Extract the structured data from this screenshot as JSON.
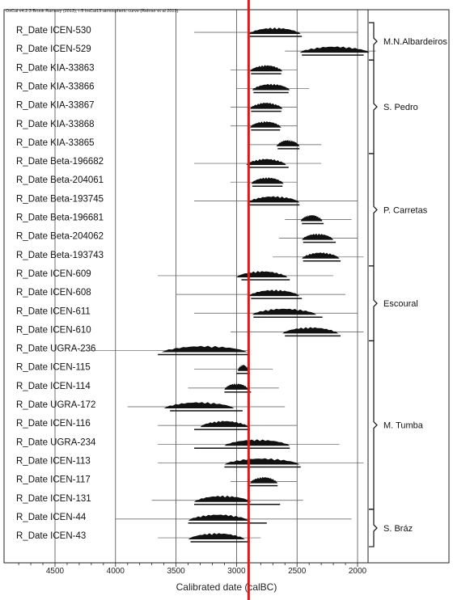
{
  "header_text": "OxCal v4.2.3 Bronk Ramsey (2013); r:5 IntCal13 atmospheric curve (Reimer et al 2013)",
  "chart_data": {
    "type": "range",
    "xlabel": "Calibrated date (calBC)",
    "xlim": [
      4800,
      1850
    ],
    "xticks": [
      4500,
      4000,
      3500,
      3000,
      2500,
      2000
    ],
    "reference_line": {
      "x": 2900,
      "color": "#e0181b"
    },
    "series": [
      {
        "label": "R_Date ICEN-530",
        "range": [
          2900,
          2470
        ],
        "bar": [
          2890,
          2460
        ],
        "extent": [
          3350,
          2000
        ]
      },
      {
        "label": "R_Date ICEN-529",
        "range": [
          2480,
          1900
        ],
        "bar": [
          2460,
          1950
        ],
        "extent": [
          2600,
          1850
        ]
      },
      {
        "label": "R_Date KIA-33863",
        "range": [
          2890,
          2620
        ],
        "bar": [
          2880,
          2630
        ],
        "extent": [
          3050,
          2500
        ]
      },
      {
        "label": "R_Date KIA-33866",
        "range": [
          2870,
          2560
        ],
        "bar": [
          2860,
          2570
        ],
        "extent": [
          3000,
          2400
        ]
      },
      {
        "label": "R_Date KIA-33867",
        "range": [
          2890,
          2620
        ],
        "bar": [
          2880,
          2630
        ],
        "extent": [
          3050,
          2500
        ]
      },
      {
        "label": "R_Date KIA-33868",
        "range": [
          2890,
          2630
        ],
        "bar": [
          2880,
          2640
        ],
        "extent": [
          3050,
          2500
        ]
      },
      {
        "label": "R_Date KIA-33865",
        "range": [
          2670,
          2480
        ],
        "bar": [
          2660,
          2480
        ],
        "extent": [
          2900,
          2300
        ]
      },
      {
        "label": "R_Date Beta-196682",
        "range": [
          2920,
          2590
        ],
        "bar": [
          2900,
          2570
        ],
        "extent": [
          3350,
          2300
        ]
      },
      {
        "label": "R_Date Beta-204061",
        "range": [
          2880,
          2610
        ],
        "bar": [
          2870,
          2620
        ],
        "extent": [
          3050,
          2500
        ]
      },
      {
        "label": "R_Date Beta-193745",
        "range": [
          2910,
          2480
        ],
        "bar": [
          2900,
          2480
        ],
        "extent": [
          3350,
          2000
        ]
      },
      {
        "label": "R_Date Beta-196681",
        "range": [
          2470,
          2290
        ],
        "bar": [
          2460,
          2280
        ],
        "extent": [
          2600,
          2050
        ]
      },
      {
        "label": "R_Date Beta-204062",
        "range": [
          2460,
          2200
        ],
        "bar": [
          2450,
          2180
        ],
        "extent": [
          2650,
          2000
        ]
      },
      {
        "label": "R_Date Beta-193743",
        "range": [
          2460,
          2150
        ],
        "bar": [
          2450,
          2140
        ],
        "extent": [
          2700,
          1950
        ]
      },
      {
        "label": "R_Date ICEN-609",
        "range": [
          3000,
          2580
        ],
        "bar": [
          2960,
          2560
        ],
        "extent": [
          3650,
          2200
        ]
      },
      {
        "label": "R_Date ICEN-608",
        "range": [
          2900,
          2480
        ],
        "bar": [
          2880,
          2460
        ],
        "extent": [
          3500,
          2100
        ]
      },
      {
        "label": "R_Date ICEN-611",
        "range": [
          2870,
          2340
        ],
        "bar": [
          2860,
          2290
        ],
        "extent": [
          3350,
          2000
        ]
      },
      {
        "label": "R_Date ICEN-610",
        "range": [
          2620,
          2160
        ],
        "bar": [
          2600,
          2140
        ],
        "extent": [
          3050,
          1950
        ]
      },
      {
        "label": "R_Date UGRA-236",
        "range": [
          3620,
          2910
        ],
        "bar": [
          3650,
          2900
        ],
        "extent": [
          4300,
          2900
        ]
      },
      {
        "label": "R_Date ICEN-115",
        "range": [
          2990,
          2900
        ],
        "bar": [
          3000,
          2890
        ],
        "extent": [
          3350,
          2700
        ]
      },
      {
        "label": "R_Date ICEN-114",
        "range": [
          3100,
          2900
        ],
        "bar": [
          3100,
          2880
        ],
        "extent": [
          3400,
          2650
        ]
      },
      {
        "label": "R_Date UGRA-172",
        "range": [
          3600,
          3020
        ],
        "bar": [
          3550,
          2950
        ],
        "extent": [
          3900,
          2600
        ]
      },
      {
        "label": "R_Date ICEN-116",
        "range": [
          3300,
          2900
        ],
        "bar": [
          3350,
          2890
        ],
        "extent": [
          3650,
          2500
        ]
      },
      {
        "label": "R_Date UGRA-234",
        "range": [
          3100,
          2560
        ],
        "bar": [
          3350,
          2560
        ],
        "extent": [
          3650,
          2150
        ]
      },
      {
        "label": "R_Date ICEN-113",
        "range": [
          3100,
          2480
        ],
        "bar": [
          3100,
          2470
        ],
        "extent": [
          3650,
          1950
        ]
      },
      {
        "label": "R_Date ICEN-117",
        "range": [
          2890,
          2660
        ],
        "bar": [
          2900,
          2660
        ],
        "extent": [
          3050,
          2500
        ]
      },
      {
        "label": "R_Date ICEN-131",
        "range": [
          3350,
          2880
        ],
        "bar": [
          3350,
          2640
        ],
        "extent": [
          3700,
          2450
        ]
      },
      {
        "label": "R_Date ICEN-44",
        "range": [
          3400,
          2900
        ],
        "bar": [
          3400,
          2750
        ],
        "extent": [
          4000,
          2050
        ]
      },
      {
        "label": "R_Date ICEN-43",
        "range": [
          3400,
          2930
        ],
        "bar": [
          3380,
          2890
        ],
        "extent": [
          3650,
          2800
        ]
      }
    ],
    "groups": [
      {
        "name": "M.N.Albardeiros",
        "from": 0,
        "to": 1
      },
      {
        "name": "S. Pedro",
        "from": 2,
        "to": 6
      },
      {
        "name": "P. Carretas",
        "from": 7,
        "to": 12
      },
      {
        "name": "Escoural",
        "from": 13,
        "to": 16
      },
      {
        "name": "M. Tumba",
        "from": 17,
        "to": 25
      },
      {
        "name": "S. Bráz",
        "from": 26,
        "to": 27
      }
    ]
  }
}
